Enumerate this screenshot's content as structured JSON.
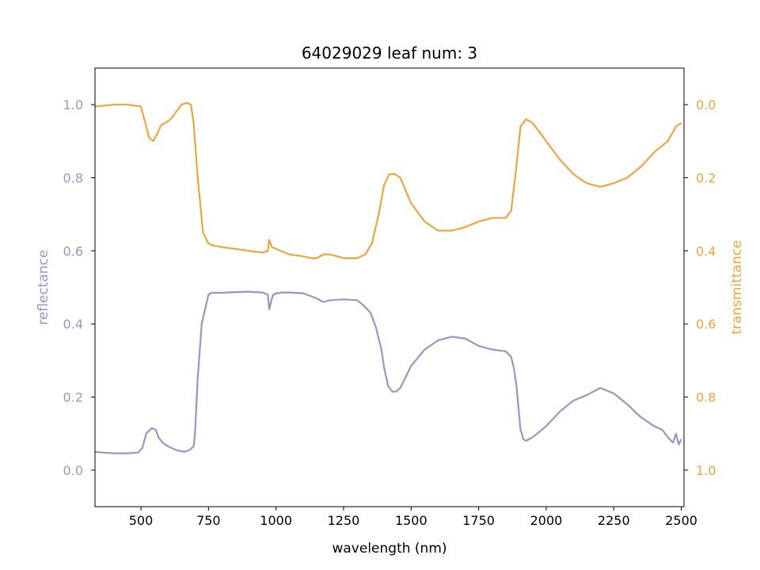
{
  "chart_data": {
    "type": "line",
    "title": "64029029 leaf num: 3",
    "xlabel": "wavelength (nm)",
    "ylabel_left": "reflectance",
    "ylabel_right": "transmittance",
    "xlim": [
      330,
      2510
    ],
    "ylim_left": [
      -0.1,
      1.1
    ],
    "ylim_right": [
      1.1,
      -0.1
    ],
    "right_axis_inverted": true,
    "x_ticks": [
      500,
      750,
      1000,
      1250,
      1500,
      1750,
      2000,
      2250,
      2500
    ],
    "y_ticks_left": [
      0.0,
      0.2,
      0.4,
      0.6,
      0.8,
      1.0
    ],
    "y_ticks_right": [
      0.0,
      0.2,
      0.4,
      0.6,
      0.8,
      1.0
    ],
    "grid": false,
    "colors": {
      "reflectance": "#9b94c7",
      "transmittance": "#eea53e",
      "axes": "#000000"
    },
    "series": [
      {
        "name": "reflectance",
        "axis": "left",
        "color": "#9b94c7",
        "x": [
          330,
          360,
          400,
          450,
          490,
          505,
          520,
          540,
          555,
          565,
          580,
          600,
          630,
          660,
          680,
          695,
          700,
          710,
          725,
          750,
          760,
          800,
          850,
          900,
          950,
          970,
          975,
          985,
          990,
          1000,
          1005,
          1010,
          1020,
          1050,
          1100,
          1150,
          1175,
          1200,
          1250,
          1300,
          1325,
          1350,
          1370,
          1390,
          1400,
          1415,
          1430,
          1445,
          1460,
          1480,
          1500,
          1550,
          1600,
          1650,
          1700,
          1750,
          1800,
          1850,
          1870,
          1880,
          1890,
          1900,
          1905,
          1910,
          1915,
          1925,
          1950,
          2000,
          2050,
          2100,
          2150,
          2200,
          2250,
          2300,
          2350,
          2400,
          2430,
          2450,
          2470,
          2480,
          2490,
          2500
        ],
        "values": [
          0.05,
          0.048,
          0.046,
          0.046,
          0.048,
          0.06,
          0.1,
          0.115,
          0.11,
          0.09,
          0.075,
          0.065,
          0.055,
          0.05,
          0.055,
          0.065,
          0.1,
          0.25,
          0.4,
          0.48,
          0.485,
          0.485,
          0.487,
          0.488,
          0.486,
          0.48,
          0.44,
          0.47,
          0.48,
          0.483,
          0.485,
          0.484,
          0.486,
          0.486,
          0.484,
          0.47,
          0.46,
          0.465,
          0.467,
          0.465,
          0.45,
          0.43,
          0.39,
          0.33,
          0.28,
          0.23,
          0.215,
          0.215,
          0.225,
          0.255,
          0.285,
          0.33,
          0.355,
          0.365,
          0.36,
          0.34,
          0.33,
          0.325,
          0.31,
          0.28,
          0.23,
          0.15,
          0.11,
          0.1,
          0.085,
          0.08,
          0.09,
          0.12,
          0.16,
          0.19,
          0.205,
          0.225,
          0.21,
          0.18,
          0.145,
          0.12,
          0.11,
          0.09,
          0.075,
          0.1,
          0.07,
          0.085
        ]
      },
      {
        "name": "transmittance",
        "axis": "right",
        "color": "#eea53e",
        "x": [
          330,
          360,
          400,
          450,
          500,
          520,
          530,
          545,
          560,
          575,
          590,
          610,
          630,
          650,
          670,
          685,
          695,
          710,
          730,
          750,
          765,
          800,
          850,
          900,
          950,
          970,
          975,
          985,
          1000,
          1050,
          1100,
          1130,
          1150,
          1175,
          1200,
          1250,
          1300,
          1330,
          1355,
          1380,
          1400,
          1420,
          1440,
          1460,
          1480,
          1500,
          1550,
          1600,
          1650,
          1700,
          1750,
          1800,
          1850,
          1870,
          1885,
          1895,
          1905,
          1915,
          1925,
          1950,
          2000,
          2050,
          2100,
          2150,
          2200,
          2250,
          2300,
          2350,
          2400,
          2450,
          2480,
          2500
        ],
        "values": [
          0.005,
          0.003,
          0.0,
          0.0,
          0.005,
          0.06,
          0.09,
          0.1,
          0.08,
          0.055,
          0.05,
          0.04,
          0.02,
          0.0,
          -0.005,
          0.0,
          0.05,
          0.2,
          0.35,
          0.38,
          0.385,
          0.39,
          0.395,
          0.4,
          0.405,
          0.4,
          0.37,
          0.39,
          0.395,
          0.41,
          0.415,
          0.42,
          0.42,
          0.41,
          0.41,
          0.42,
          0.42,
          0.41,
          0.38,
          0.3,
          0.22,
          0.19,
          0.19,
          0.2,
          0.235,
          0.27,
          0.32,
          0.345,
          0.345,
          0.335,
          0.32,
          0.31,
          0.31,
          0.29,
          0.2,
          0.13,
          0.06,
          0.05,
          0.04,
          0.05,
          0.1,
          0.15,
          0.19,
          0.215,
          0.225,
          0.215,
          0.2,
          0.17,
          0.13,
          0.1,
          0.06,
          0.05
        ]
      }
    ]
  }
}
